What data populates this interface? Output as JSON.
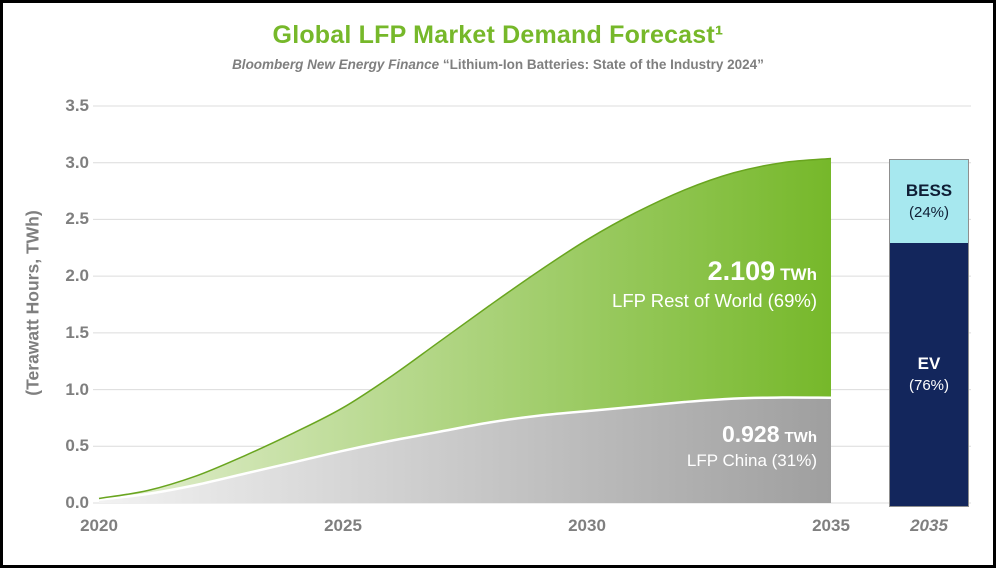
{
  "header": {
    "title": "Global LFP Market Demand Forecast¹",
    "subtitle_source": "Bloomberg New Energy Finance",
    "subtitle_quote": "“Lithium-Ion Batteries: State of the Industry 2024”"
  },
  "y_axis_label": "(Terawatt Hours, TWh)",
  "annotations": {
    "rest_of_world": {
      "value": "2.109",
      "unit": "TWh",
      "label": "LFP Rest of World (69%)"
    },
    "china": {
      "value": "0.928",
      "unit": "TWh",
      "label": "LFP China (31%)"
    }
  },
  "bar": {
    "bess_label": "BESS",
    "bess_pct": "(24%)",
    "ev_label": "EV",
    "ev_pct": "(76%)",
    "x_label": "2035"
  },
  "chart_data": {
    "type": "area",
    "stacked": true,
    "title": "Global LFP Market Demand Forecast",
    "source": "Bloomberg New Energy Finance “Lithium-Ion Batteries: State of the Industry 2024”",
    "ylabel": "(Terawatt Hours, TWh)",
    "ylim": [
      0,
      3.5
    ],
    "y_ticks": [
      0,
      0.5,
      1,
      1.5,
      2,
      2.5,
      3,
      3.5
    ],
    "x_range": [
      2020,
      2035
    ],
    "x_ticks": [
      2020,
      2025,
      2030,
      2035
    ],
    "grid": true,
    "legend_position": "none",
    "x": [
      2020,
      2021,
      2022,
      2023,
      2024,
      2025,
      2026,
      2027,
      2028,
      2029,
      2030,
      2031,
      2032,
      2033,
      2034,
      2035
    ],
    "series": [
      {
        "name": "LFP China",
        "share_pct": 31,
        "value_2035_twh": 0.928,
        "values": [
          0.03,
          0.08,
          0.16,
          0.26,
          0.36,
          0.46,
          0.55,
          0.63,
          0.71,
          0.77,
          0.81,
          0.85,
          0.89,
          0.92,
          0.93,
          0.928
        ]
      },
      {
        "name": "LFP Rest of World",
        "share_pct": 69,
        "value_2035_twh": 2.109,
        "values": [
          0.01,
          0.03,
          0.08,
          0.16,
          0.26,
          0.38,
          0.57,
          0.8,
          1.03,
          1.27,
          1.51,
          1.71,
          1.87,
          1.99,
          2.07,
          2.109
        ]
      }
    ],
    "bar_2035": {
      "x_label": "2035",
      "total_twh": 3.037,
      "segments": [
        {
          "name": "EV",
          "pct": 76
        },
        {
          "name": "BESS",
          "pct": 24
        }
      ]
    },
    "colors": {
      "title_green": "#76b82a",
      "china_area_left": "#f2f2f2",
      "china_area_right": "#9f9f9f",
      "row_area_left": "#e4efd2",
      "row_area_right": "#76b82a",
      "row_edge": "#69a51f",
      "bess": "#a7e8ef",
      "ev": "#13265c",
      "axis_text": "#7f7f7f",
      "grid": "#dcdcdc"
    }
  }
}
